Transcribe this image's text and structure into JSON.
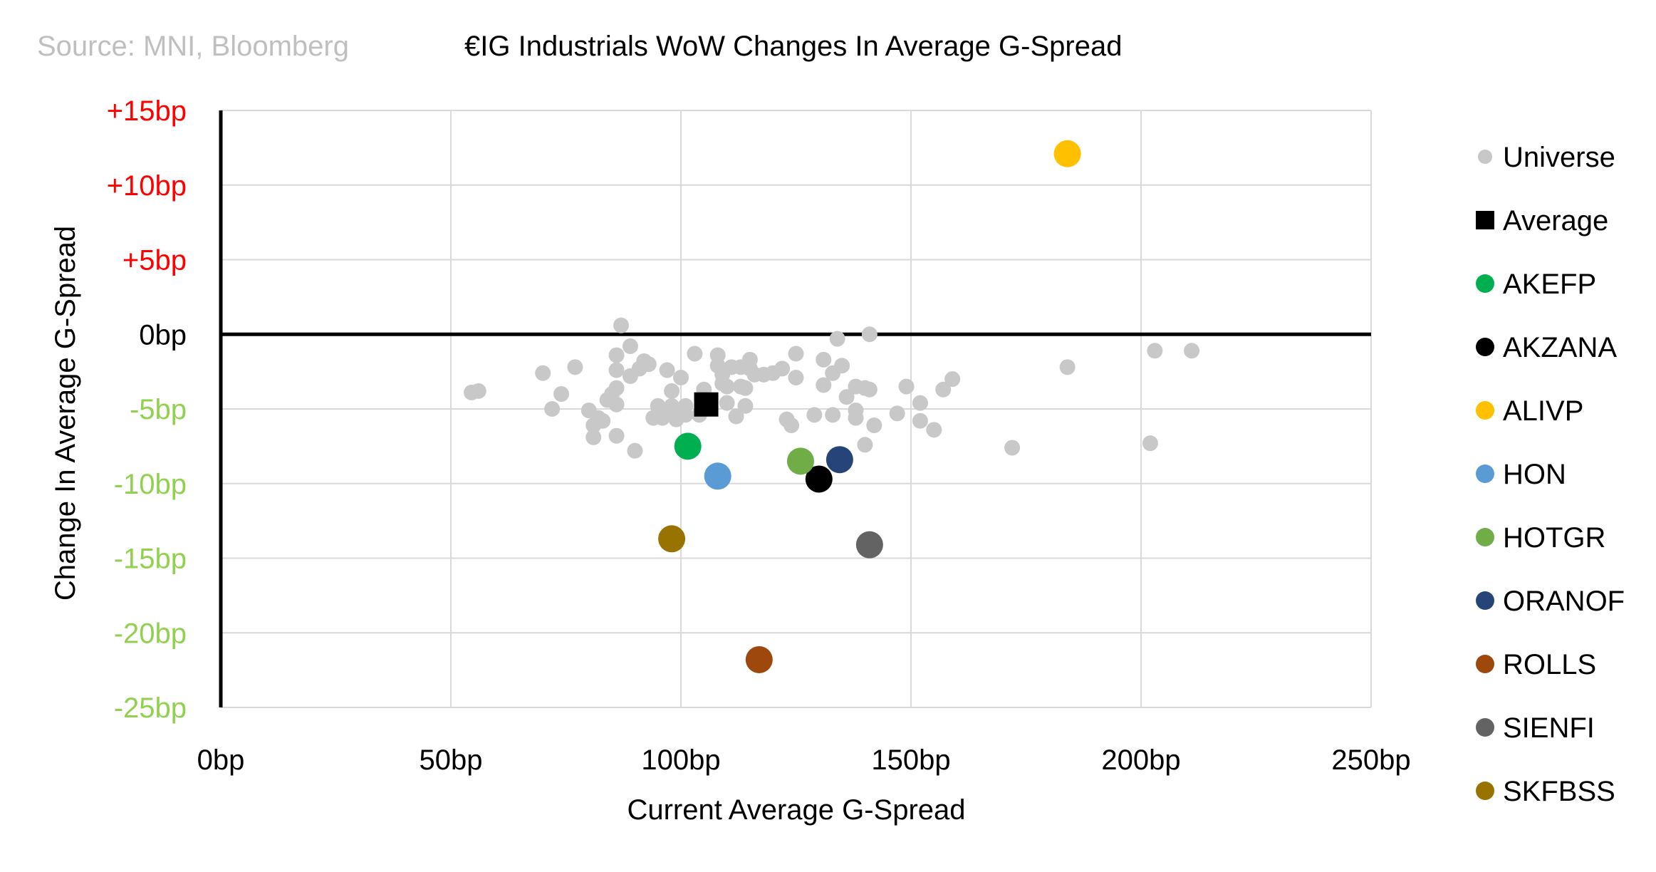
{
  "source_note": "Source: MNI, Bloomberg",
  "colors": {
    "universe": "#c8c8c8",
    "average": "#000000",
    "positive_tick": "#ff0000",
    "negative_tick": "#92d050",
    "gridline": "#d9d9d9",
    "axis": "#000000"
  },
  "chart_data": {
    "type": "scatter",
    "title": "€IG Industrials WoW Changes In Average G-Spread",
    "xlabel": "Current Average G-Spread",
    "ylabel": "Change In Average G-Spread",
    "xlim": [
      0,
      250
    ],
    "ylim": [
      -25,
      15
    ],
    "x_ticks": [
      {
        "value": 0,
        "label": "0bp"
      },
      {
        "value": 50,
        "label": "50bp"
      },
      {
        "value": 100,
        "label": "100bp"
      },
      {
        "value": 150,
        "label": "150bp"
      },
      {
        "value": 200,
        "label": "200bp"
      },
      {
        "value": 250,
        "label": "250bp"
      }
    ],
    "y_ticks": [
      {
        "value": 15,
        "label": "+15bp"
      },
      {
        "value": 10,
        "label": "+10bp"
      },
      {
        "value": 5,
        "label": "+5bp"
      },
      {
        "value": 0,
        "label": "0bp"
      },
      {
        "value": -5,
        "label": "-5bp"
      },
      {
        "value": -10,
        "label": "-10bp"
      },
      {
        "value": -15,
        "label": "-15bp"
      },
      {
        "value": -20,
        "label": "-20bp"
      },
      {
        "value": -25,
        "label": "-25bp"
      }
    ],
    "grid": true,
    "legend_position": "right",
    "universe": {
      "name": "Universe",
      "points": [
        [
          54.5,
          -3.9
        ],
        [
          56,
          -3.8
        ],
        [
          70,
          -2.6
        ],
        [
          72,
          -5
        ],
        [
          74,
          -4
        ],
        [
          77,
          -2.2
        ],
        [
          80,
          -5.1
        ],
        [
          81,
          -6.1
        ],
        [
          81,
          -6.9
        ],
        [
          82,
          -5.6
        ],
        [
          83,
          -5.8
        ],
        [
          84,
          -4.4
        ],
        [
          85,
          -4
        ],
        [
          86,
          -3.6
        ],
        [
          86,
          -1.4
        ],
        [
          86,
          -2.4
        ],
        [
          86,
          -4.7
        ],
        [
          86,
          -6.8
        ],
        [
          87,
          0.6
        ],
        [
          89,
          -0.8
        ],
        [
          89,
          -2.8
        ],
        [
          90,
          -7.8
        ],
        [
          91,
          -2.3
        ],
        [
          92,
          -1.8
        ],
        [
          93,
          -2
        ],
        [
          94,
          -5.6
        ],
        [
          95,
          -4.8
        ],
        [
          95,
          -5.3
        ],
        [
          96,
          -5.6
        ],
        [
          97,
          -2.4
        ],
        [
          98,
          -5.3
        ],
        [
          98,
          -4.8
        ],
        [
          98,
          -3.8
        ],
        [
          99,
          -5.7
        ],
        [
          100,
          -2.9
        ],
        [
          100,
          -5.4
        ],
        [
          101,
          -4.8
        ],
        [
          101,
          -5.4
        ],
        [
          103,
          -1.3
        ],
        [
          104,
          -5.4
        ],
        [
          105,
          -3.7
        ],
        [
          108,
          -1.4
        ],
        [
          108,
          -2.1
        ],
        [
          109,
          -2.7
        ],
        [
          109,
          -3.3
        ],
        [
          110,
          -3.5
        ],
        [
          110,
          -4.6
        ],
        [
          111,
          -2.2
        ],
        [
          112,
          -5.5
        ],
        [
          113,
          -3.5
        ],
        [
          113,
          -2.2
        ],
        [
          114,
          -3.6
        ],
        [
          114,
          -4.8
        ],
        [
          115,
          -1.7
        ],
        [
          115,
          -2.3
        ],
        [
          116,
          -2.7
        ],
        [
          118,
          -2.7
        ],
        [
          120,
          -2.6
        ],
        [
          122,
          -2.3
        ],
        [
          123,
          -5.7
        ],
        [
          124,
          -6.1
        ],
        [
          125,
          -1.3
        ],
        [
          125,
          -2.9
        ],
        [
          129,
          -5.4
        ],
        [
          131,
          -1.7
        ],
        [
          131,
          -3.4
        ],
        [
          133,
          -5.4
        ],
        [
          133,
          -2.6
        ],
        [
          134,
          -0.3
        ],
        [
          135,
          -2.1
        ],
        [
          136,
          -4.2
        ],
        [
          138,
          -5.1
        ],
        [
          138,
          -5.6
        ],
        [
          138,
          -3.5
        ],
        [
          140,
          -3.6
        ],
        [
          140,
          -7.4
        ],
        [
          141,
          0
        ],
        [
          141,
          -3.7
        ],
        [
          142,
          -6.1
        ],
        [
          147,
          -5.3
        ],
        [
          149,
          -3.5
        ],
        [
          152,
          -4.6
        ],
        [
          152,
          -5.8
        ],
        [
          155,
          -6.4
        ],
        [
          157,
          -3.7
        ],
        [
          159,
          -3
        ],
        [
          172,
          -7.6
        ],
        [
          184,
          -2.2
        ],
        [
          202,
          -7.3
        ],
        [
          203,
          -1.1
        ],
        [
          211,
          -1.1
        ]
      ]
    },
    "series": [
      {
        "name": "Average",
        "x": 105.5,
        "y": -4.7,
        "color": "#000000",
        "marker": "square"
      },
      {
        "name": "AKEFP",
        "x": 101.5,
        "y": -7.5,
        "color": "#00b050",
        "marker": "circle"
      },
      {
        "name": "AKZANA",
        "x": 130,
        "y": -9.7,
        "color": "#000000",
        "marker": "circle"
      },
      {
        "name": "ALIVP",
        "x": 184,
        "y": 12.1,
        "color": "#ffc000",
        "marker": "circle"
      },
      {
        "name": "HON",
        "x": 108,
        "y": -9.5,
        "color": "#5b9bd5",
        "marker": "circle"
      },
      {
        "name": "HOTGR",
        "x": 126,
        "y": -8.5,
        "color": "#70ad47",
        "marker": "circle"
      },
      {
        "name": "ORANOF",
        "x": 134.5,
        "y": -8.4,
        "color": "#264478",
        "marker": "circle"
      },
      {
        "name": "ROLLS",
        "x": 117,
        "y": -21.8,
        "color": "#9e480e",
        "marker": "circle"
      },
      {
        "name": "SIENFI",
        "x": 141,
        "y": -14.1,
        "color": "#636363",
        "marker": "circle"
      },
      {
        "name": "SKFBSS",
        "x": 98,
        "y": -13.7,
        "color": "#997300",
        "marker": "circle"
      }
    ]
  }
}
